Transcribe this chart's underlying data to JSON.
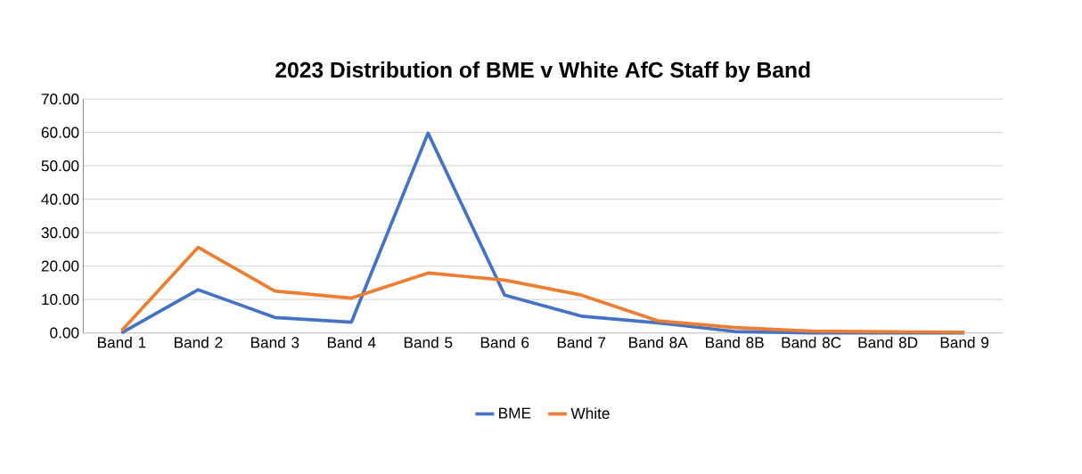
{
  "chart_data": {
    "type": "line",
    "title": "2023 Distribution of BME v White AfC Staff by Band",
    "categories": [
      "Band 1",
      "Band 2",
      "Band 3",
      "Band 4",
      "Band 5",
      "Band 6",
      "Band 7",
      "Band 8A",
      "Band 8B",
      "Band 8C",
      "Band 8D",
      "Band 9"
    ],
    "series": [
      {
        "name": "BME",
        "color": "#4472c4",
        "values": [
          0,
          12.9,
          4.6,
          3.2,
          59.8,
          11.3,
          5.0,
          3.0,
          0.4,
          0,
          0,
          0
        ]
      },
      {
        "name": "White",
        "color": "#ed7d31",
        "values": [
          0.6,
          25.6,
          12.5,
          10.4,
          17.9,
          15.8,
          11.3,
          3.6,
          1.6,
          0.5,
          0.3,
          0.2
        ]
      }
    ],
    "ylim": [
      0,
      70
    ],
    "yticks": [
      {
        "value": 0,
        "label": "0.00"
      },
      {
        "value": 10,
        "label": "10.00"
      },
      {
        "value": 20,
        "label": "20.00"
      },
      {
        "value": 30,
        "label": "30.00"
      },
      {
        "value": 40,
        "label": "40.00"
      },
      {
        "value": 50,
        "label": "50.00"
      },
      {
        "value": 60,
        "label": "60.00"
      },
      {
        "value": 70,
        "label": "70.00"
      }
    ],
    "grid": "y",
    "legend": "bottom",
    "marker": "none",
    "line_style": "solid"
  }
}
